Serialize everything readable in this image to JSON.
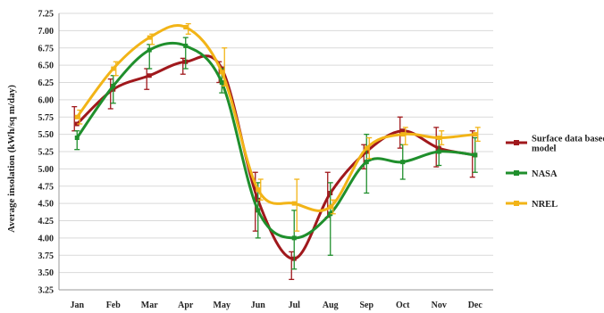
{
  "chart_data": {
    "type": "line",
    "title": "",
    "xlabel": "",
    "ylabel": "Average insolation (kWh/sq m/day)",
    "ylim": [
      3.25,
      7.25
    ],
    "yticks": [
      "7.25",
      "7.00",
      "6.75",
      "6.50",
      "6.25",
      "6.00",
      "5.75",
      "5.50",
      "5.25",
      "5.00",
      "4.75",
      "4.50",
      "4.25",
      "4.00",
      "3.75",
      "3.50",
      "3.25"
    ],
    "categories": [
      "Jan",
      "Feb",
      "Mar",
      "Apr",
      "May",
      "Jun",
      "Jul",
      "Aug",
      "Sep",
      "Oct",
      "Nov",
      "Dec"
    ],
    "grid": "horizontal",
    "legend_position": "right",
    "series": [
      {
        "name": "Surface data based model",
        "color": "#a0181c",
        "values": [
          5.65,
          6.15,
          6.35,
          6.55,
          6.45,
          4.55,
          3.7,
          4.65,
          5.25,
          5.55,
          5.3,
          5.2
        ],
        "err_low": [
          5.55,
          5.87,
          6.15,
          6.37,
          6.25,
          4.1,
          3.4,
          4.3,
          5.0,
          5.3,
          5.03,
          4.88
        ],
        "err_high": [
          5.9,
          6.3,
          6.45,
          6.6,
          6.55,
          4.95,
          3.8,
          4.95,
          5.35,
          5.75,
          5.6,
          5.55
        ]
      },
      {
        "name": "NASA",
        "color": "#1f8f2c",
        "values": [
          5.45,
          6.2,
          6.72,
          6.78,
          6.25,
          4.4,
          4.0,
          4.35,
          5.1,
          5.1,
          5.25,
          5.2
        ],
        "err_low": [
          5.28,
          5.95,
          6.45,
          6.45,
          6.1,
          4.0,
          3.55,
          3.75,
          4.65,
          4.85,
          5.05,
          4.95
        ],
        "err_high": [
          5.55,
          6.35,
          6.8,
          6.9,
          6.45,
          4.8,
          4.4,
          4.8,
          5.5,
          5.35,
          5.45,
          5.45
        ]
      },
      {
        "name": "NREL",
        "color": "#f2b417",
        "values": [
          5.75,
          6.45,
          6.9,
          7.05,
          6.4,
          4.7,
          4.5,
          4.45,
          5.3,
          5.5,
          5.45,
          5.5
        ],
        "err_low": [
          5.65,
          6.35,
          6.8,
          6.95,
          6.2,
          4.55,
          4.1,
          4.35,
          5.15,
          5.35,
          5.35,
          5.4
        ],
        "err_high": [
          5.85,
          6.55,
          6.95,
          7.1,
          6.75,
          4.85,
          4.85,
          4.55,
          5.45,
          5.6,
          5.55,
          5.6
        ]
      }
    ]
  }
}
